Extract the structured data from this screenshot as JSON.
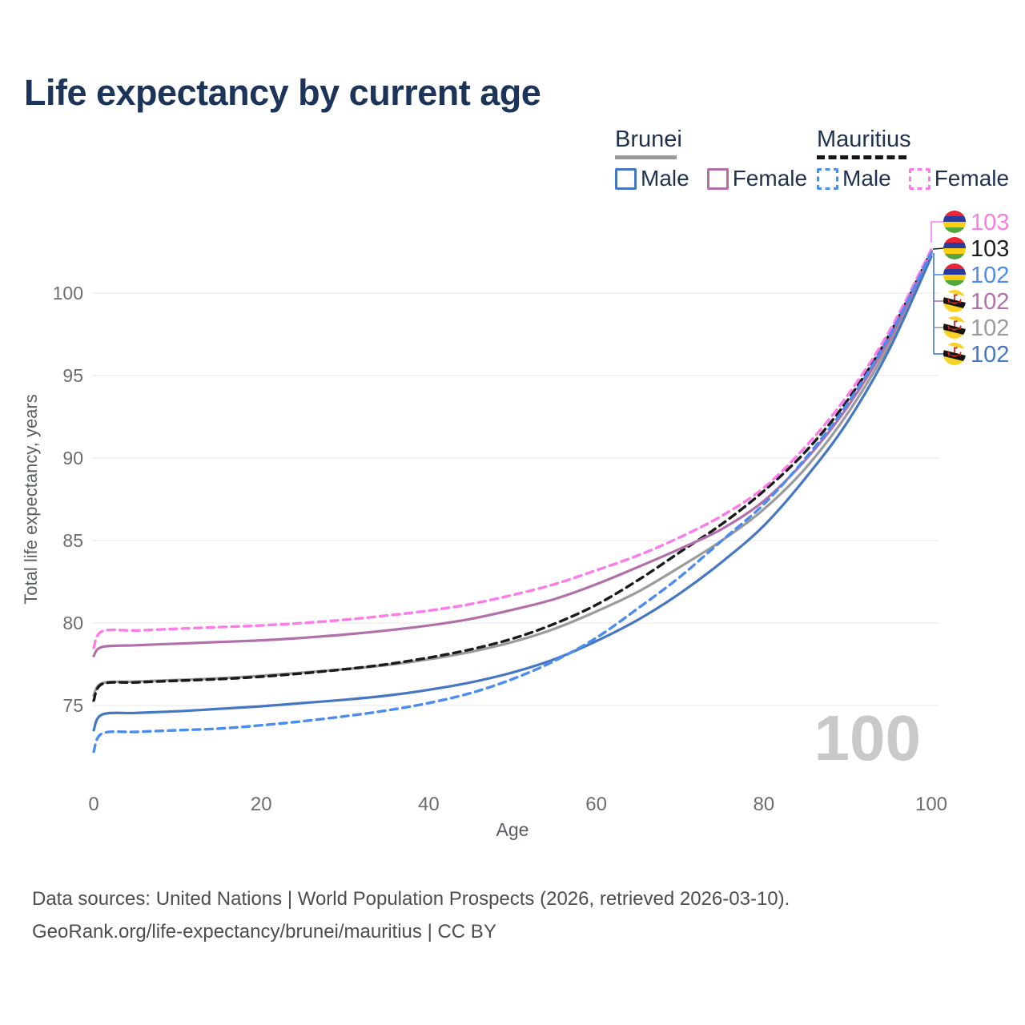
{
  "title": "Life expectancy by current age",
  "legend": {
    "groups": [
      {
        "country": "Brunei",
        "line_style": "solid",
        "items": [
          {
            "label": "Male",
            "series_index": 5
          },
          {
            "label": "Female",
            "series_index": 3
          }
        ]
      },
      {
        "country": "Mauritius",
        "line_style": "dashed",
        "items": [
          {
            "label": "Male",
            "series_index": 2
          },
          {
            "label": "Female",
            "series_index": 0
          }
        ]
      }
    ]
  },
  "watermark": "100",
  "footer": {
    "line1": "Data sources: United Nations | World Population Prospects (2026, retrieved 2026-03-10).",
    "line2": "GeoRank.org/life-expectancy/brunei/mauritius | CC BY"
  },
  "chart_data": {
    "type": "line",
    "title": "Life expectancy by current age",
    "xlabel": "Age",
    "ylabel": "Total life expectancy, years",
    "xlim": [
      0,
      100
    ],
    "ylim": [
      71.5,
      103.5
    ],
    "x_ticks": [
      0,
      20,
      40,
      60,
      80,
      100
    ],
    "y_ticks": [
      75,
      80,
      85,
      90,
      95,
      100
    ],
    "grid": "horizontal",
    "legend_position": "top-right",
    "ages": [
      0,
      1,
      5,
      10,
      15,
      20,
      25,
      30,
      35,
      40,
      45,
      50,
      55,
      60,
      65,
      70,
      75,
      80,
      85,
      90,
      95,
      100
    ],
    "series": [
      {
        "name": "Mauritius Female",
        "country": "Mauritius",
        "sex": "Female",
        "line": "dashed",
        "color": "#fb7ce8",
        "end_label": "103",
        "flag": "mauritius",
        "values": [
          78.5,
          79.5,
          79.55,
          79.65,
          79.75,
          79.85,
          80.0,
          80.2,
          80.45,
          80.75,
          81.15,
          81.7,
          82.35,
          83.2,
          84.1,
          85.2,
          86.5,
          88.2,
          90.7,
          93.8,
          97.7,
          102.65
        ]
      },
      {
        "name": "Mauritius Both sexes",
        "country": "Mauritius",
        "sex": "Both",
        "line": "dashed",
        "color": "#1b1b1b",
        "end_label": "103",
        "flag": "mauritius",
        "values": [
          75.3,
          76.3,
          76.4,
          76.5,
          76.6,
          76.75,
          76.95,
          77.2,
          77.5,
          77.9,
          78.4,
          79.05,
          79.95,
          81.1,
          82.6,
          84.3,
          86.0,
          88.0,
          90.4,
          93.5,
          97.5,
          102.55
        ]
      },
      {
        "name": "Mauritius Male",
        "country": "Mauritius",
        "sex": "Male",
        "line": "dashed",
        "color": "#4b8cf0",
        "end_label": "102",
        "flag": "mauritius",
        "values": [
          72.2,
          73.3,
          73.4,
          73.5,
          73.6,
          73.8,
          74.05,
          74.35,
          74.7,
          75.15,
          75.75,
          76.6,
          77.7,
          79.1,
          80.9,
          82.8,
          85.0,
          87.2,
          90.0,
          93.3,
          97.4,
          102.45
        ]
      },
      {
        "name": "Brunei Female",
        "country": "Brunei",
        "sex": "Female",
        "line": "solid",
        "color": "#b170a9",
        "end_label": "102",
        "flag": "brunei",
        "values": [
          78.0,
          78.55,
          78.65,
          78.75,
          78.85,
          78.95,
          79.1,
          79.3,
          79.55,
          79.85,
          80.25,
          80.8,
          81.45,
          82.35,
          83.4,
          84.5,
          85.7,
          87.4,
          89.9,
          93.1,
          97.2,
          102.4
        ]
      },
      {
        "name": "Brunei Both sexes",
        "country": "Brunei",
        "sex": "Both",
        "line": "solid",
        "color": "#9b9b9b",
        "end_label": "102",
        "flag": "brunei",
        "values": [
          75.6,
          76.35,
          76.45,
          76.55,
          76.65,
          76.8,
          77.0,
          77.2,
          77.45,
          77.8,
          78.25,
          78.85,
          79.65,
          80.7,
          81.9,
          83.4,
          85.0,
          86.9,
          89.4,
          92.7,
          96.9,
          102.3
        ]
      },
      {
        "name": "Brunei Male",
        "country": "Brunei",
        "sex": "Male",
        "line": "solid",
        "color": "#4577c2",
        "end_label": "102",
        "flag": "brunei",
        "values": [
          73.5,
          74.45,
          74.55,
          74.65,
          74.8,
          74.95,
          75.15,
          75.35,
          75.6,
          75.95,
          76.4,
          77.0,
          77.8,
          78.9,
          80.2,
          81.8,
          83.7,
          85.9,
          88.8,
          92.2,
          96.6,
          102.2
        ]
      }
    ],
    "draw_order": [
      4,
      1,
      3,
      0,
      5,
      2
    ]
  }
}
